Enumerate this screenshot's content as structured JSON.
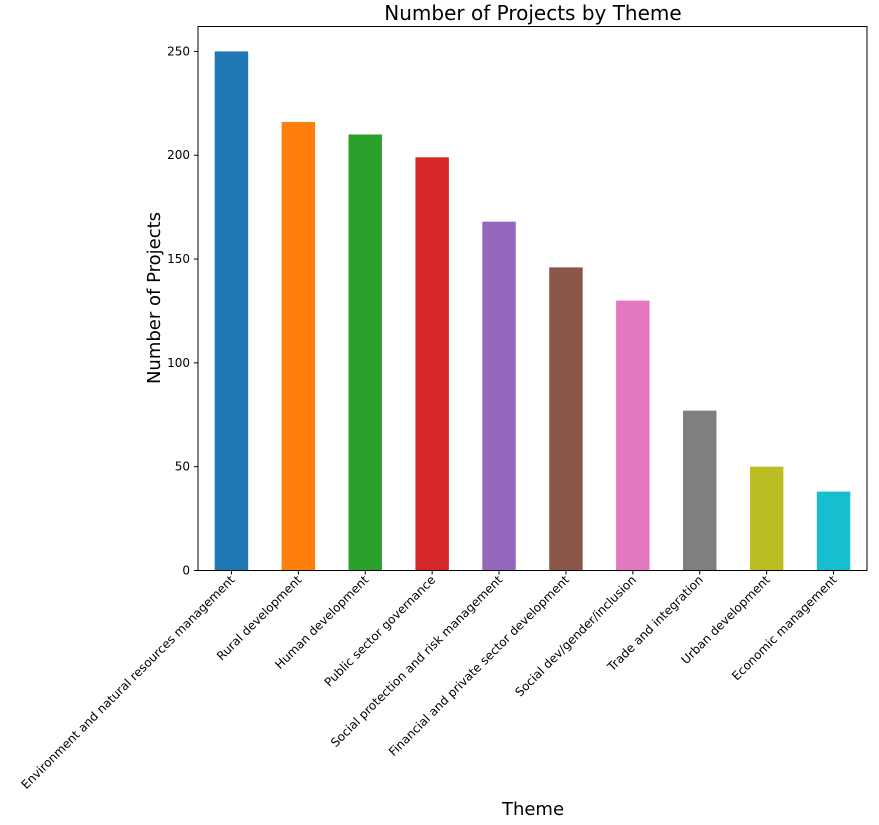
{
  "chart_data": {
    "type": "bar",
    "title": "Number of Projects by Theme",
    "xlabel": "Theme",
    "ylabel": "Number of Projects",
    "ylim": [
      0,
      262
    ],
    "yticks": [
      0,
      50,
      100,
      150,
      200,
      250
    ],
    "grid": false,
    "categories": [
      "Environment and natural resources management",
      "Rural development",
      "Human development",
      "Public sector governance",
      "Social protection and risk management",
      "Financial and private sector development",
      "Social dev/gender/inclusion",
      "Trade and integration",
      "Urban development",
      "Economic management"
    ],
    "values": [
      250,
      216,
      210,
      199,
      168,
      146,
      130,
      77,
      50,
      38
    ],
    "colors": [
      "#1f77b4",
      "#ff7f0e",
      "#2ca02c",
      "#d62728",
      "#9467bd",
      "#8c564b",
      "#e377c2",
      "#7f7f7f",
      "#bcbd22",
      "#17becf"
    ]
  }
}
